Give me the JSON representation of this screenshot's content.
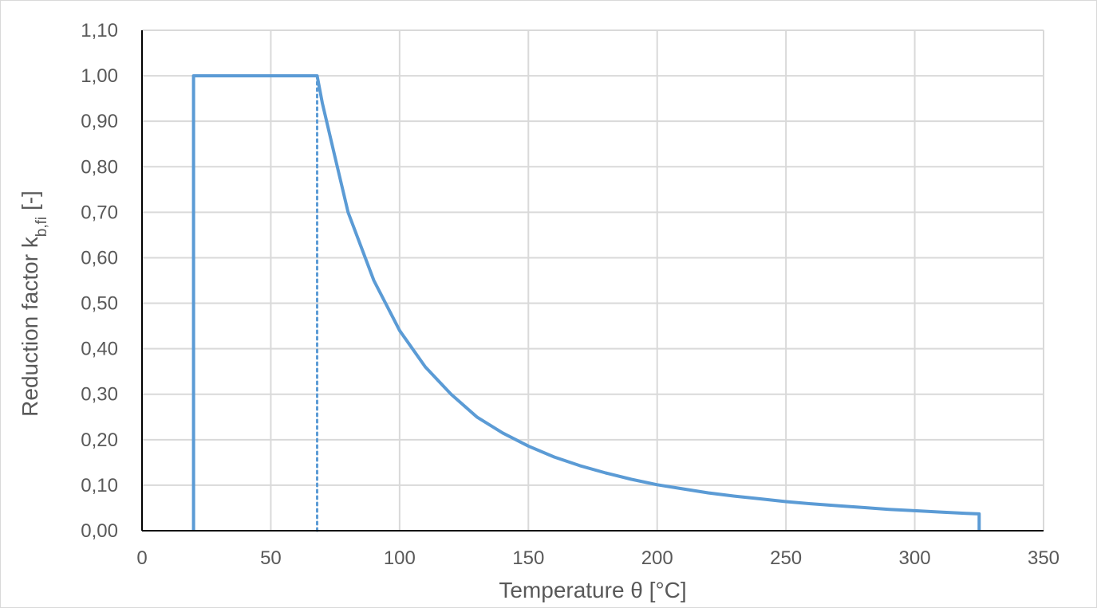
{
  "chart_data": {
    "type": "line",
    "title": "",
    "xlabel": "Temperature θ [°C]",
    "ylabel": {
      "prefix": "Reduction factor k",
      "subscript": "b,fi",
      "suffix": " [-]"
    },
    "xlim": [
      0,
      350
    ],
    "ylim": [
      0,
      1.1
    ],
    "x_ticks": [
      {
        "value": 0,
        "label": "0"
      },
      {
        "value": 50,
        "label": "50"
      },
      {
        "value": 100,
        "label": "100"
      },
      {
        "value": 150,
        "label": "150"
      },
      {
        "value": 200,
        "label": "200"
      },
      {
        "value": 250,
        "label": "250"
      },
      {
        "value": 300,
        "label": "300"
      },
      {
        "value": 350,
        "label": "350"
      }
    ],
    "y_ticks": [
      {
        "value": 0.0,
        "label": "0,00"
      },
      {
        "value": 0.1,
        "label": "0,10"
      },
      {
        "value": 0.2,
        "label": "0,20"
      },
      {
        "value": 0.3,
        "label": "0,30"
      },
      {
        "value": 0.4,
        "label": "0,40"
      },
      {
        "value": 0.5,
        "label": "0,50"
      },
      {
        "value": 0.6,
        "label": "0,60"
      },
      {
        "value": 0.7,
        "label": "0,70"
      },
      {
        "value": 0.8,
        "label": "0,80"
      },
      {
        "value": 0.9,
        "label": "0,90"
      },
      {
        "value": 1.0,
        "label": "1,00"
      },
      {
        "value": 1.1,
        "label": "1,10"
      }
    ],
    "grid": true,
    "legend": "none",
    "colors": {
      "series": "#5b9bd5",
      "grid": "#d9d9d9",
      "axis": "#000000",
      "text": "#595959"
    },
    "series": [
      {
        "style": "solid",
        "x": [
          20,
          20,
          68,
          70,
          75,
          80,
          90,
          100,
          110,
          120,
          130,
          140,
          150,
          160,
          170,
          180,
          190,
          200,
          210,
          220,
          230,
          240,
          250,
          260,
          270,
          280,
          290,
          300,
          310,
          320,
          325,
          325
        ],
        "y": [
          0,
          1.0,
          1.0,
          0.94,
          0.82,
          0.7,
          0.55,
          0.44,
          0.36,
          0.3,
          0.25,
          0.215,
          0.186,
          0.162,
          0.143,
          0.127,
          0.113,
          0.101,
          0.092,
          0.083,
          0.076,
          0.07,
          0.064,
          0.059,
          0.055,
          0.051,
          0.047,
          0.044,
          0.041,
          0.038,
          0.037,
          0
        ]
      },
      {
        "style": "dotted",
        "x": [
          68,
          68
        ],
        "y": [
          0,
          1.0
        ]
      }
    ]
  }
}
